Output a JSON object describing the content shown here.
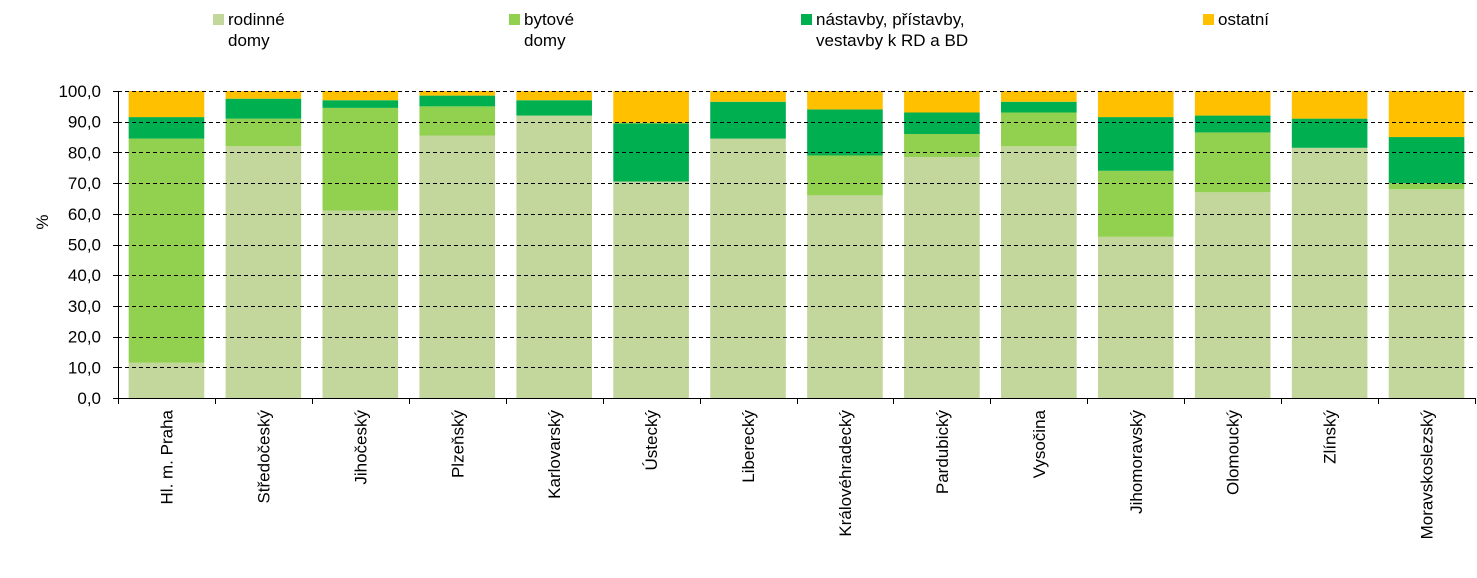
{
  "chart_data": {
    "type": "bar",
    "stacked": true,
    "ylabel": "%",
    "ylim": [
      0,
      100
    ],
    "y_step": 10,
    "y_tick_labels": [
      "0,0",
      "10,0",
      "20,0",
      "30,0",
      "40,0",
      "50,0",
      "60,0",
      "70,0",
      "80,0",
      "90,0",
      "100,0"
    ],
    "grid": "horizontal dashed",
    "legend_position": "top",
    "categories": [
      "Hl. m. Praha",
      "Středočeský",
      "Jihočeský",
      "Plzeňský",
      "Karlovarský",
      "Ústecký",
      "Liberecký",
      "Královéhradecký",
      "Pardubický",
      "Vysočina",
      "Jihomoravský",
      "Olomoucký",
      "Zlínský",
      "Moravskoslezský"
    ],
    "series": [
      {
        "name": "rodinné\ndomy",
        "color": "#c3d69b",
        "values": [
          11.5,
          82.0,
          61.0,
          85.5,
          92.0,
          70.5,
          84.5,
          66.0,
          78.5,
          82.0,
          52.5,
          67.0,
          81.5,
          68.0
        ]
      },
      {
        "name": "bytové\ndomy",
        "color": "#92d050",
        "values": [
          73.0,
          9.0,
          33.5,
          9.5,
          0.0,
          0.0,
          0.0,
          13.0,
          7.5,
          11.0,
          21.5,
          19.5,
          0.0,
          2.0
        ]
      },
      {
        "name": "nástavby, přístavby,\nvestavby k RD a BD",
        "color": "#00b050",
        "values": [
          7.0,
          6.5,
          2.5,
          3.5,
          5.0,
          19.0,
          12.0,
          15.0,
          7.0,
          3.5,
          17.5,
          5.5,
          9.5,
          15.0
        ]
      },
      {
        "name": "ostatní",
        "color": "#ffc000",
        "values": [
          8.5,
          2.5,
          3.0,
          1.5,
          3.0,
          10.5,
          3.5,
          6.0,
          7.0,
          3.5,
          8.5,
          8.0,
          9.0,
          15.0
        ]
      }
    ]
  }
}
